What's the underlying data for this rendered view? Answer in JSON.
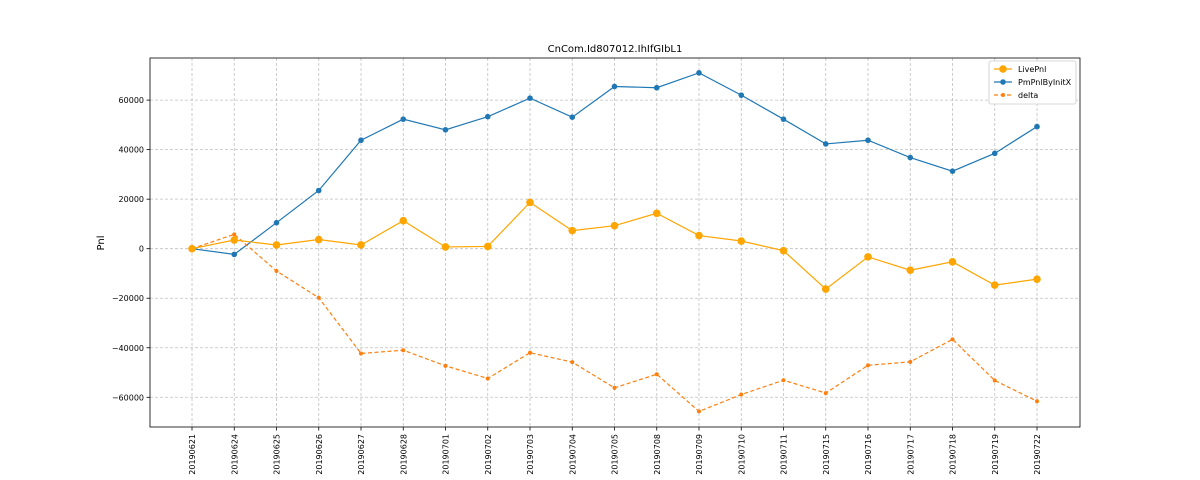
{
  "chart_data": {
    "type": "line",
    "title": "CnCom.Id807012.IhIfGIbL1",
    "xlabel": "",
    "ylabel": "Pnl",
    "grid": true,
    "legend_position": "top-right",
    "ylim": [
      -72000,
      77000
    ],
    "y_ticks": [
      -60000,
      -40000,
      -20000,
      0,
      20000,
      40000,
      60000
    ],
    "y_tick_labels": [
      "−60000",
      "−40000",
      "−20000",
      "0",
      "20000",
      "40000",
      "60000"
    ],
    "categories": [
      "20190621",
      "20190624",
      "20190625",
      "20190626",
      "20190627",
      "20190628",
      "20190701",
      "20190702",
      "20190703",
      "20190704",
      "20190705",
      "20190708",
      "20190709",
      "20190710",
      "20190711",
      "20190715",
      "20190716",
      "20190717",
      "20190718",
      "20190719",
      "20190722"
    ],
    "series": [
      {
        "name": "LivePnl",
        "color": "#ffa500",
        "style": "solid",
        "marker": "large",
        "values": [
          0,
          3500,
          1500,
          3700,
          1500,
          11300,
          700,
          900,
          18700,
          7300,
          9300,
          14300,
          5300,
          3100,
          -800,
          -16300,
          -3300,
          -8700,
          -5300,
          -14700,
          -12300
        ]
      },
      {
        "name": "PmPnlByInitX",
        "color": "#1f77b4",
        "style": "solid",
        "marker": "small",
        "values": [
          0,
          -2300,
          10500,
          23500,
          43800,
          52300,
          48000,
          53300,
          60800,
          53100,
          65500,
          65000,
          71000,
          62000,
          52300,
          42300,
          43800,
          36800,
          31300,
          38500,
          49300
        ]
      },
      {
        "name": "delta",
        "color": "#ff7f0e",
        "style": "dashed",
        "marker": "tiny",
        "values": [
          0,
          5800,
          -9000,
          -19800,
          -42300,
          -41000,
          -47300,
          -52400,
          -42000,
          -45800,
          -56200,
          -50700,
          -65700,
          -58900,
          -53100,
          -58300,
          -47100,
          -45700,
          -36600,
          -53200,
          -61600
        ]
      }
    ]
  }
}
